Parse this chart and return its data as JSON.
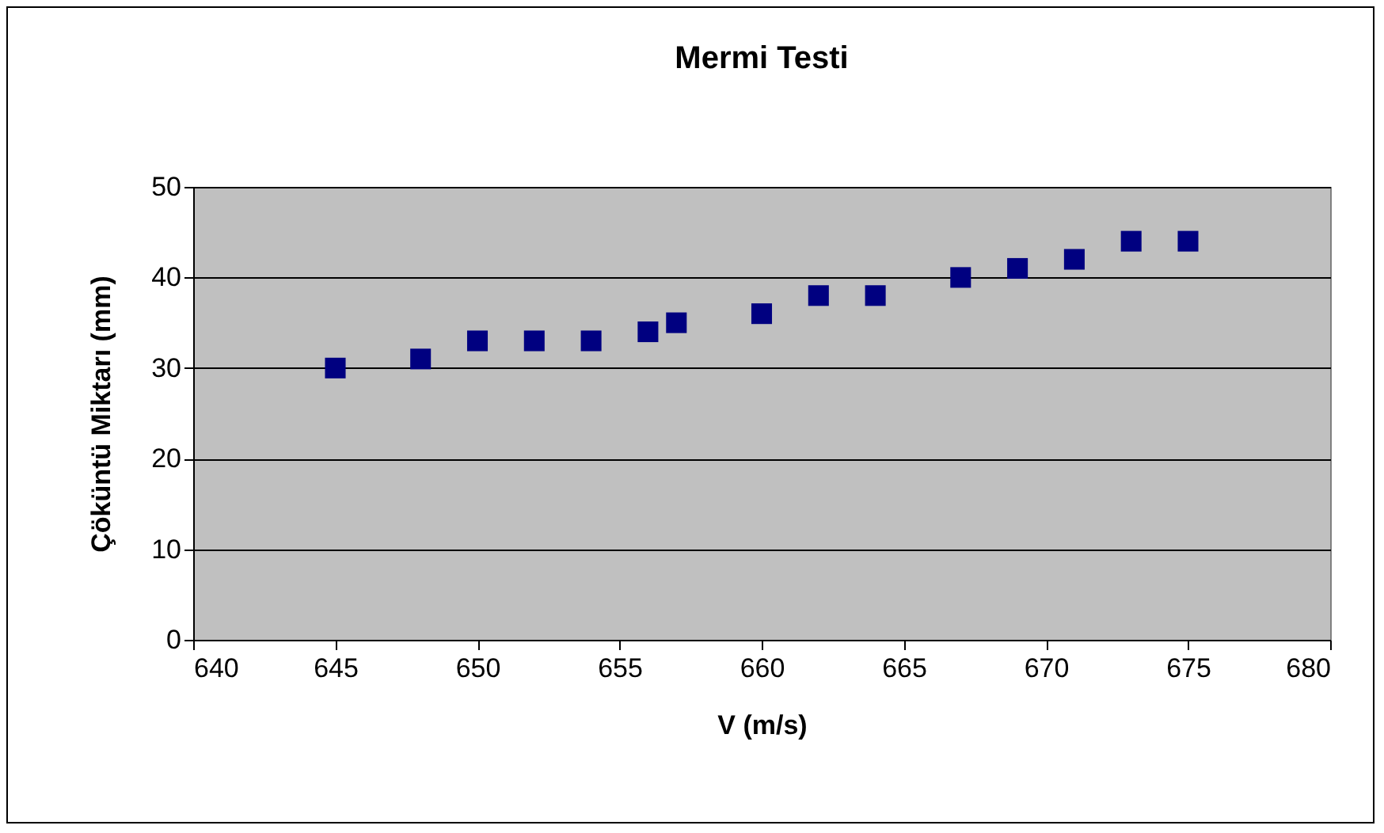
{
  "chart_data": {
    "type": "scatter",
    "title": "Mermi Testi",
    "xlabel": "V (m/s)",
    "ylabel": "Çöküntü Miktarı (mm)",
    "x": [
      645,
      648,
      650,
      652,
      654,
      656,
      657,
      660,
      662,
      664,
      667,
      669,
      671,
      673,
      675
    ],
    "values": [
      30,
      31,
      33,
      33,
      33,
      34,
      35,
      36,
      38,
      38,
      40,
      41,
      42,
      44,
      44
    ],
    "color": "#000080",
    "marker": "square",
    "grid": "y",
    "xlim": [
      640,
      680
    ],
    "xticks": [
      640,
      645,
      650,
      655,
      660,
      665,
      670,
      675,
      680
    ],
    "ylim": [
      0,
      50
    ],
    "yticks": [
      0,
      10,
      20,
      30,
      40,
      50
    ]
  }
}
